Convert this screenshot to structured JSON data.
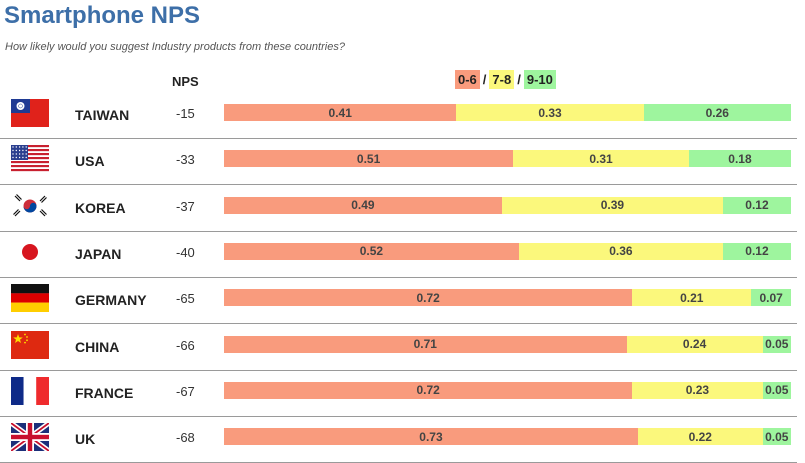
{
  "title": "Smartphone NPS",
  "subtitle": "How likely would you suggest Industry products from these countries?",
  "nps_header": "NPS",
  "legend": [
    {
      "label": "0-6",
      "color": "#f99b7d"
    },
    {
      "label": "7-8",
      "color": "#fbf87c"
    },
    {
      "label": "9-10",
      "color": "#9ef59e"
    }
  ],
  "legend_separator": "/",
  "colors": {
    "title": "#3d6fa8",
    "detractors": "#f99b7d",
    "passives": "#fbf87c",
    "promoters": "#9ef59e"
  },
  "chart_data": {
    "type": "bar",
    "orientation": "horizontal",
    "stacked": true,
    "categories": [
      "TAIWAN",
      "USA",
      "KOREA",
      "JAPAN",
      "GERMANY",
      "CHINA",
      "FRANCE",
      "UK"
    ],
    "nps": [
      "-15",
      "-33",
      "-37",
      "-40",
      "-65",
      "-66",
      "-67",
      "-68"
    ],
    "flags": [
      "taiwan-flag-icon",
      "usa-flag-icon",
      "korea-flag-icon",
      "japan-flag-icon",
      "germany-flag-icon",
      "china-flag-icon",
      "france-flag-icon",
      "uk-flag-icon"
    ],
    "series": [
      {
        "name": "0-6",
        "values": [
          0.41,
          0.51,
          0.49,
          0.52,
          0.72,
          0.71,
          0.72,
          0.73
        ],
        "labels": [
          "0.41",
          "0.51",
          "0.49",
          "0.52",
          "0.72",
          "0.71",
          "0.72",
          "0.73"
        ]
      },
      {
        "name": "7-8",
        "values": [
          0.33,
          0.31,
          0.39,
          0.36,
          0.21,
          0.24,
          0.23,
          0.22
        ],
        "labels": [
          "0.33",
          "0.31",
          "0.39",
          "0.36",
          "0.21",
          "0.24",
          "0.23",
          "0.22"
        ]
      },
      {
        "name": "9-10",
        "values": [
          0.26,
          0.18,
          0.12,
          0.12,
          0.07,
          0.05,
          0.05,
          0.05
        ],
        "labels": [
          "0.26",
          "0.18",
          "0.12",
          "0.12",
          "0.07",
          "0.05",
          "0.05",
          "0.05"
        ]
      }
    ],
    "xlim": [
      0,
      1
    ],
    "legend_position": "top"
  }
}
